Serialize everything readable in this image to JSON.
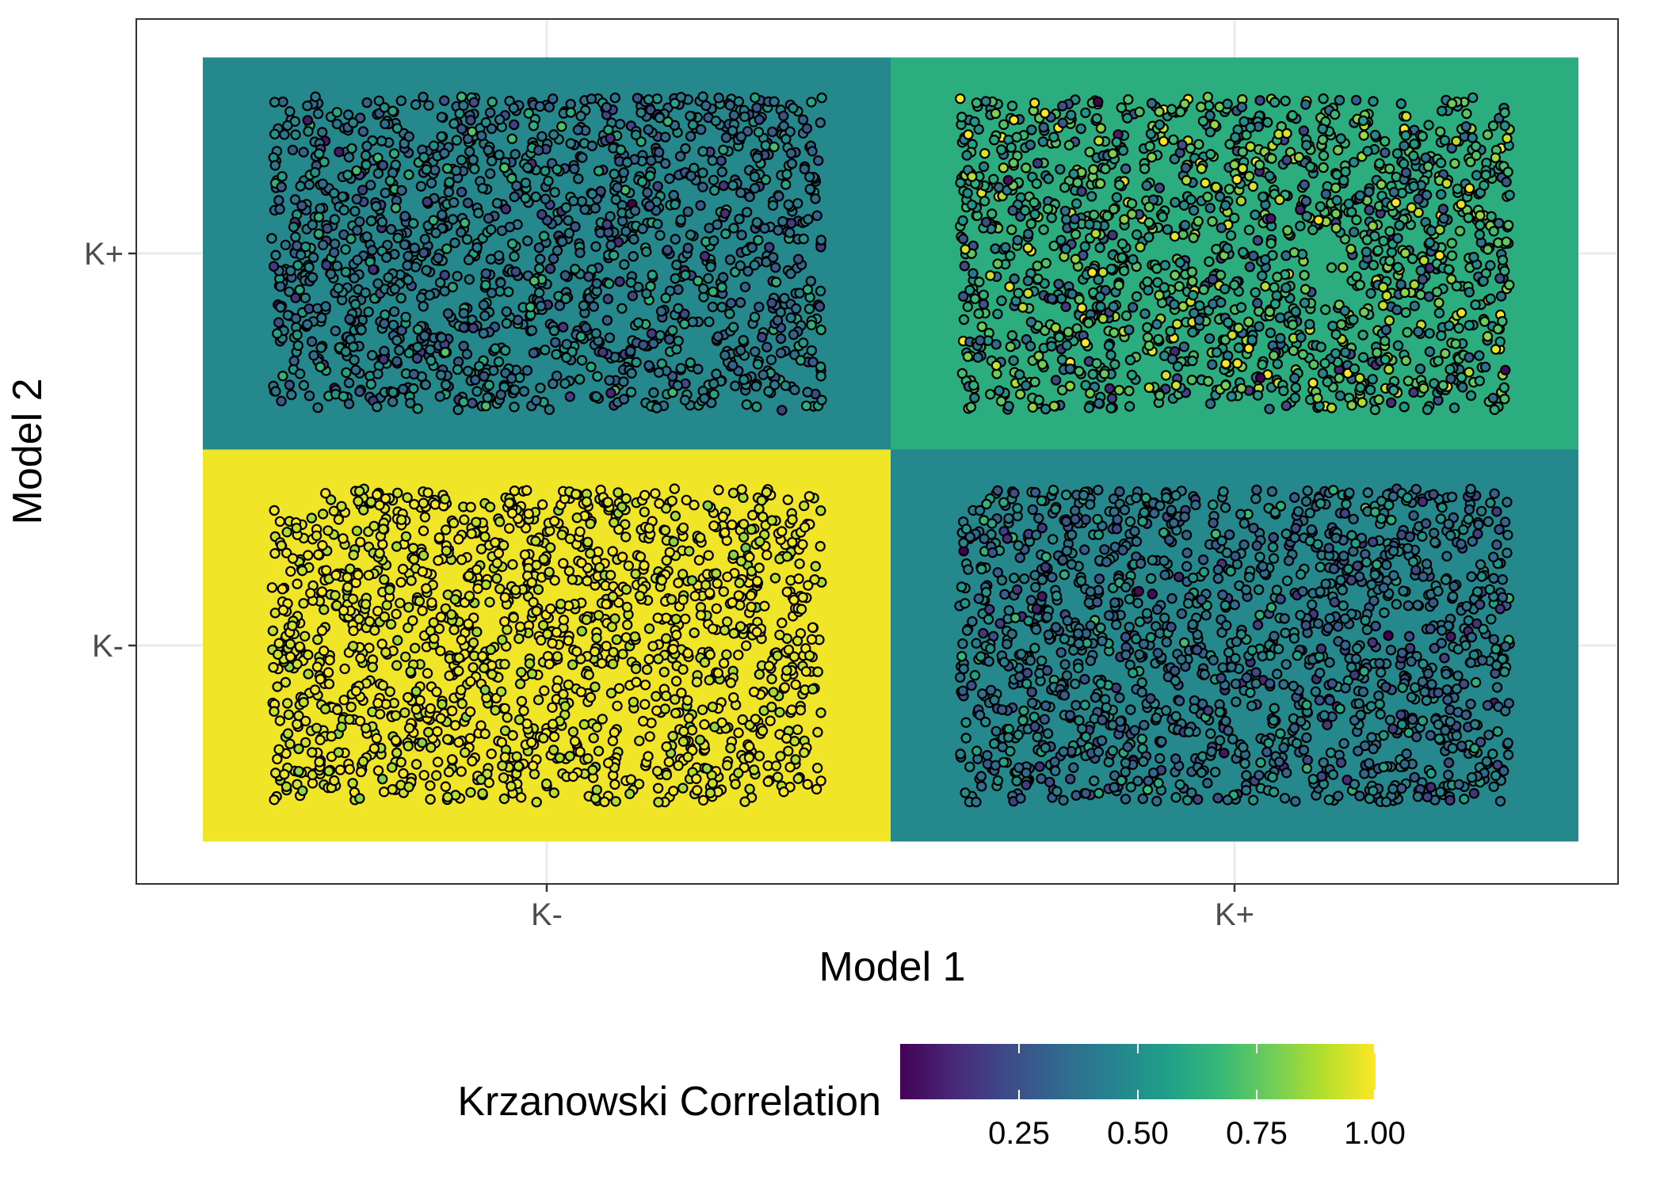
{
  "chart_data": {
    "type": "heatmap",
    "title": "",
    "xlabel": "Model 1",
    "ylabel": "Model 2",
    "x_categories": [
      "K-",
      "K+"
    ],
    "y_categories": [
      "K-",
      "K+"
    ],
    "cells": [
      {
        "x": "K-",
        "y": "K+",
        "value": 0.47,
        "points_center": 0.42,
        "points_spread": 0.12
      },
      {
        "x": "K+",
        "y": "K+",
        "value": 0.62,
        "points_center": 0.6,
        "points_spread": 0.2
      },
      {
        "x": "K-",
        "y": "K-",
        "value": 0.98,
        "points_center": 0.96,
        "points_spread": 0.05
      },
      {
        "x": "K+",
        "y": "K-",
        "value": 0.47,
        "points_center": 0.4,
        "points_spread": 0.12
      }
    ],
    "legend": {
      "title": "Krzanowski Correlation",
      "placement": "bottom",
      "min": 0.0,
      "max": 1.0,
      "ticks": [
        0.25,
        0.5,
        0.75,
        1.0
      ],
      "tick_labels": [
        "0.25",
        "0.50",
        "0.75",
        "1.00"
      ]
    },
    "grid": true,
    "palette": "viridis",
    "viridis_stops": [
      "#440154",
      "#482878",
      "#3e4a89",
      "#31688e",
      "#26828e",
      "#1f9e89",
      "#35b779",
      "#6dcd59",
      "#b4de2c",
      "#fde725"
    ]
  }
}
